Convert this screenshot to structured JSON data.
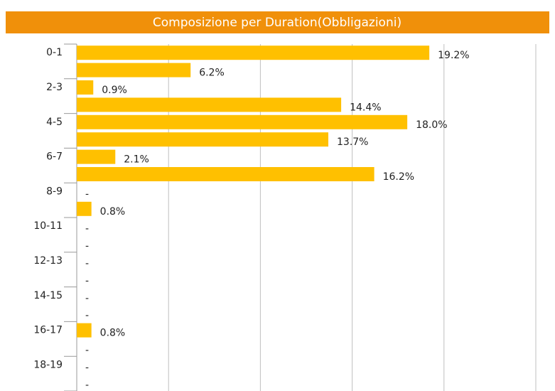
{
  "chart_data": {
    "type": "hbar",
    "title": "Composizione per Duration(Obbligazioni)",
    "categories": [
      "0-1",
      null,
      "2-3",
      null,
      "4-5",
      null,
      "6-7",
      null,
      "8-9",
      null,
      "10-11",
      null,
      "12-13",
      null,
      "14-15",
      null,
      "16-17",
      null,
      "18-19",
      null
    ],
    "values": [
      19.2,
      6.2,
      0.9,
      14.4,
      18.0,
      13.7,
      2.1,
      16.2,
      0,
      0.8,
      0,
      0,
      0,
      0,
      0,
      0,
      0.8,
      0,
      0,
      0
    ],
    "value_labels": [
      "19.2%",
      "6.2%",
      "0.9%",
      "14.4%",
      "18.0%",
      "13.7%",
      "2.1%",
      "16.2%",
      "-",
      "0.8%",
      "-",
      "-",
      "-",
      "-",
      "-",
      "-",
      "0.8%",
      "-",
      "-",
      "-"
    ],
    "color": "#ffc000",
    "title_background": "#f0900a",
    "xlim": [
      0,
      25
    ],
    "xticks": [
      0,
      5,
      10,
      15,
      20,
      25
    ],
    "grid": true
  }
}
